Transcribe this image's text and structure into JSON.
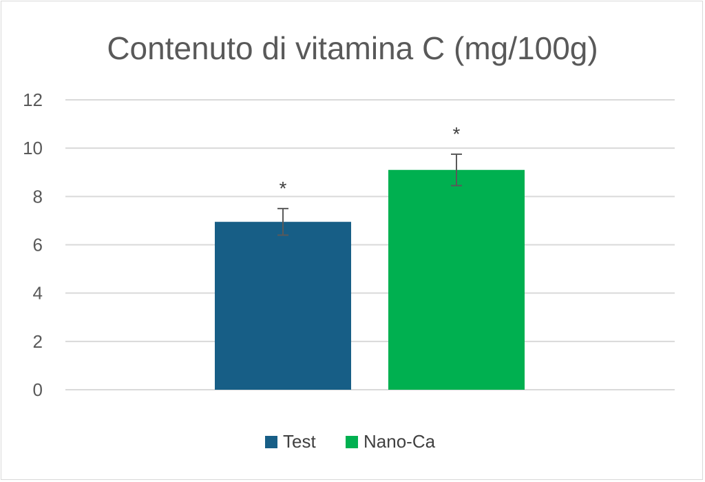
{
  "chart_data": {
    "type": "bar",
    "title": "Contenuto di vitamina C (mg/100g)",
    "xlabel": "",
    "ylabel": "",
    "ylim": [
      0,
      12
    ],
    "yticks": [
      0,
      2,
      4,
      6,
      8,
      10,
      12
    ],
    "grid": true,
    "legend_position": "bottom",
    "series": [
      {
        "name": "Test",
        "value": 6.95,
        "error": 0.55,
        "annotation": "*",
        "color": "#175e86"
      },
      {
        "name": "Nano-Ca",
        "value": 9.1,
        "error": 0.65,
        "annotation": "*",
        "color": "#00b050"
      }
    ]
  }
}
